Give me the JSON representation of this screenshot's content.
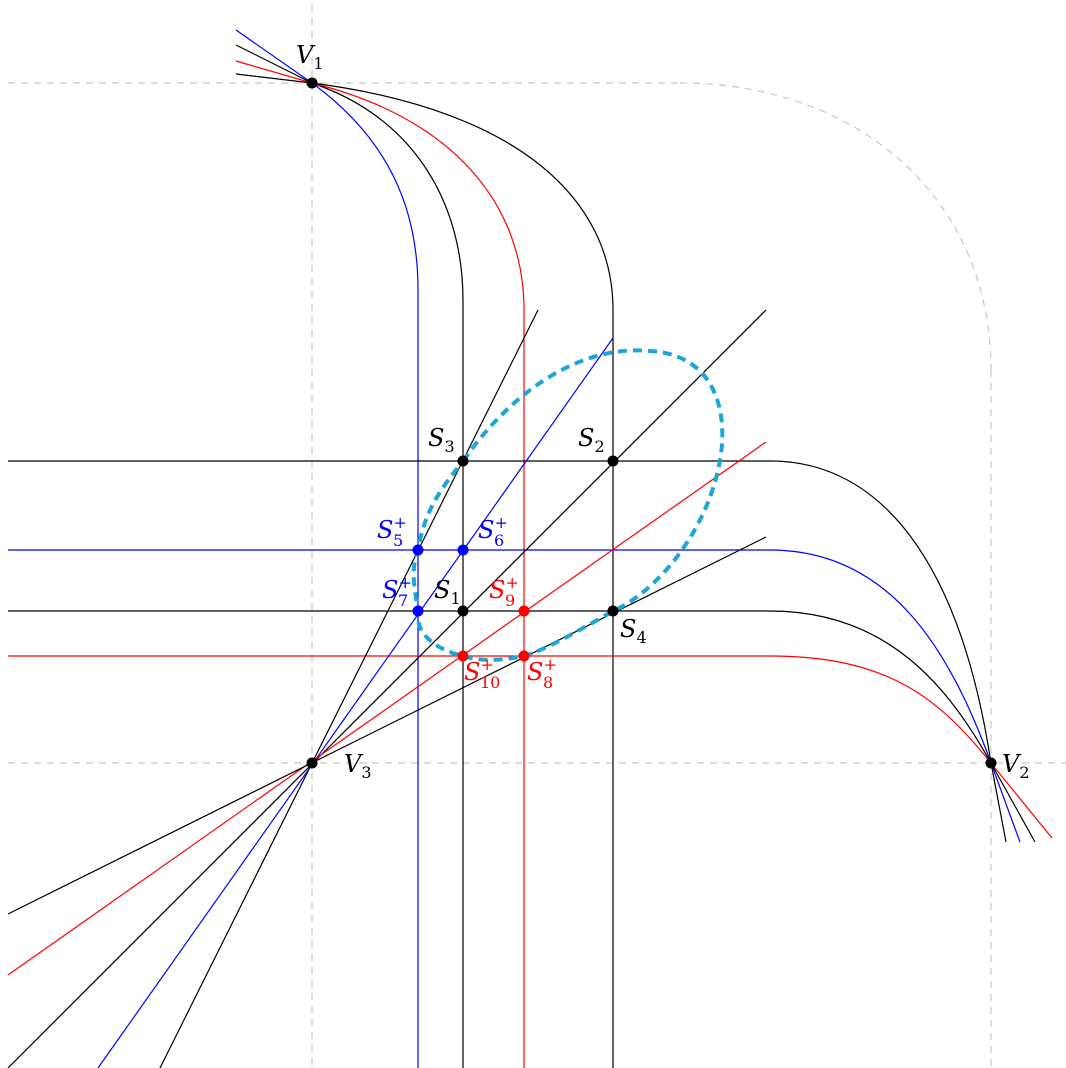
{
  "colors": {
    "black": "#000000",
    "blue": "#0000ff",
    "red": "#ff0000",
    "guide": "#c8c8c8",
    "ellipse": "#1aa7d8"
  },
  "labels": {
    "V1": {
      "base": "V",
      "sub": "1",
      "sup": ""
    },
    "V2": {
      "base": "V",
      "sub": "2",
      "sup": ""
    },
    "V3": {
      "base": "V",
      "sub": "3",
      "sup": ""
    },
    "S1": {
      "base": "S",
      "sub": "1",
      "sup": ""
    },
    "S2": {
      "base": "S",
      "sub": "2",
      "sup": ""
    },
    "S3": {
      "base": "S",
      "sub": "3",
      "sup": ""
    },
    "S4": {
      "base": "S",
      "sub": "4",
      "sup": ""
    },
    "S5": {
      "base": "S",
      "sub": "5",
      "sup": "+"
    },
    "S6": {
      "base": "S",
      "sub": "6",
      "sup": "+"
    },
    "S7": {
      "base": "S",
      "sub": "7",
      "sup": "+"
    },
    "S8": {
      "base": "S",
      "sub": "8",
      "sup": "+"
    },
    "S9": {
      "base": "S",
      "sub": "9",
      "sup": "+"
    },
    "S10": {
      "base": "S",
      "sub": "10",
      "sup": "+"
    }
  }
}
